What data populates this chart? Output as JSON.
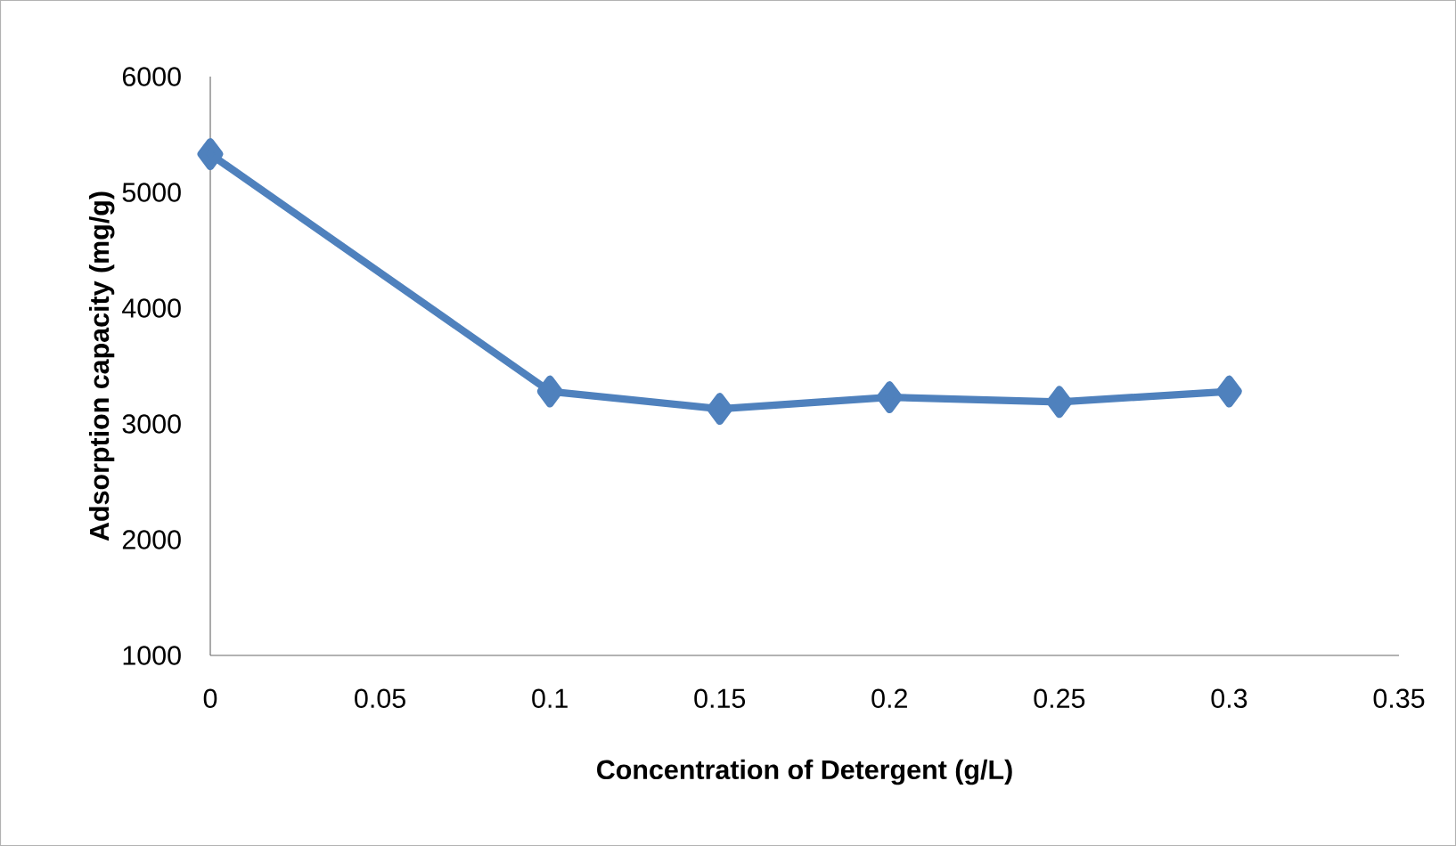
{
  "chart_data": {
    "type": "line",
    "xlabel": "Concentration of  Detergent (g/L)",
    "ylabel": "Adsorption capacity (mg/g)",
    "x": [
      0,
      0.1,
      0.15,
      0.2,
      0.25,
      0.3
    ],
    "series": [
      {
        "color": "#4f81bd",
        "values": [
          5330,
          3280,
          3130,
          3230,
          3190,
          3280
        ]
      }
    ],
    "xlim": [
      0,
      0.35
    ],
    "xticks": [
      0,
      0.05,
      0.1,
      0.15,
      0.2,
      0.25,
      0.3,
      0.35
    ],
    "ylim": [
      1000,
      6000
    ],
    "yticks": [
      1000,
      2000,
      3000,
      4000,
      5000,
      6000
    ],
    "marker": "diamond",
    "line_style": "solid"
  }
}
